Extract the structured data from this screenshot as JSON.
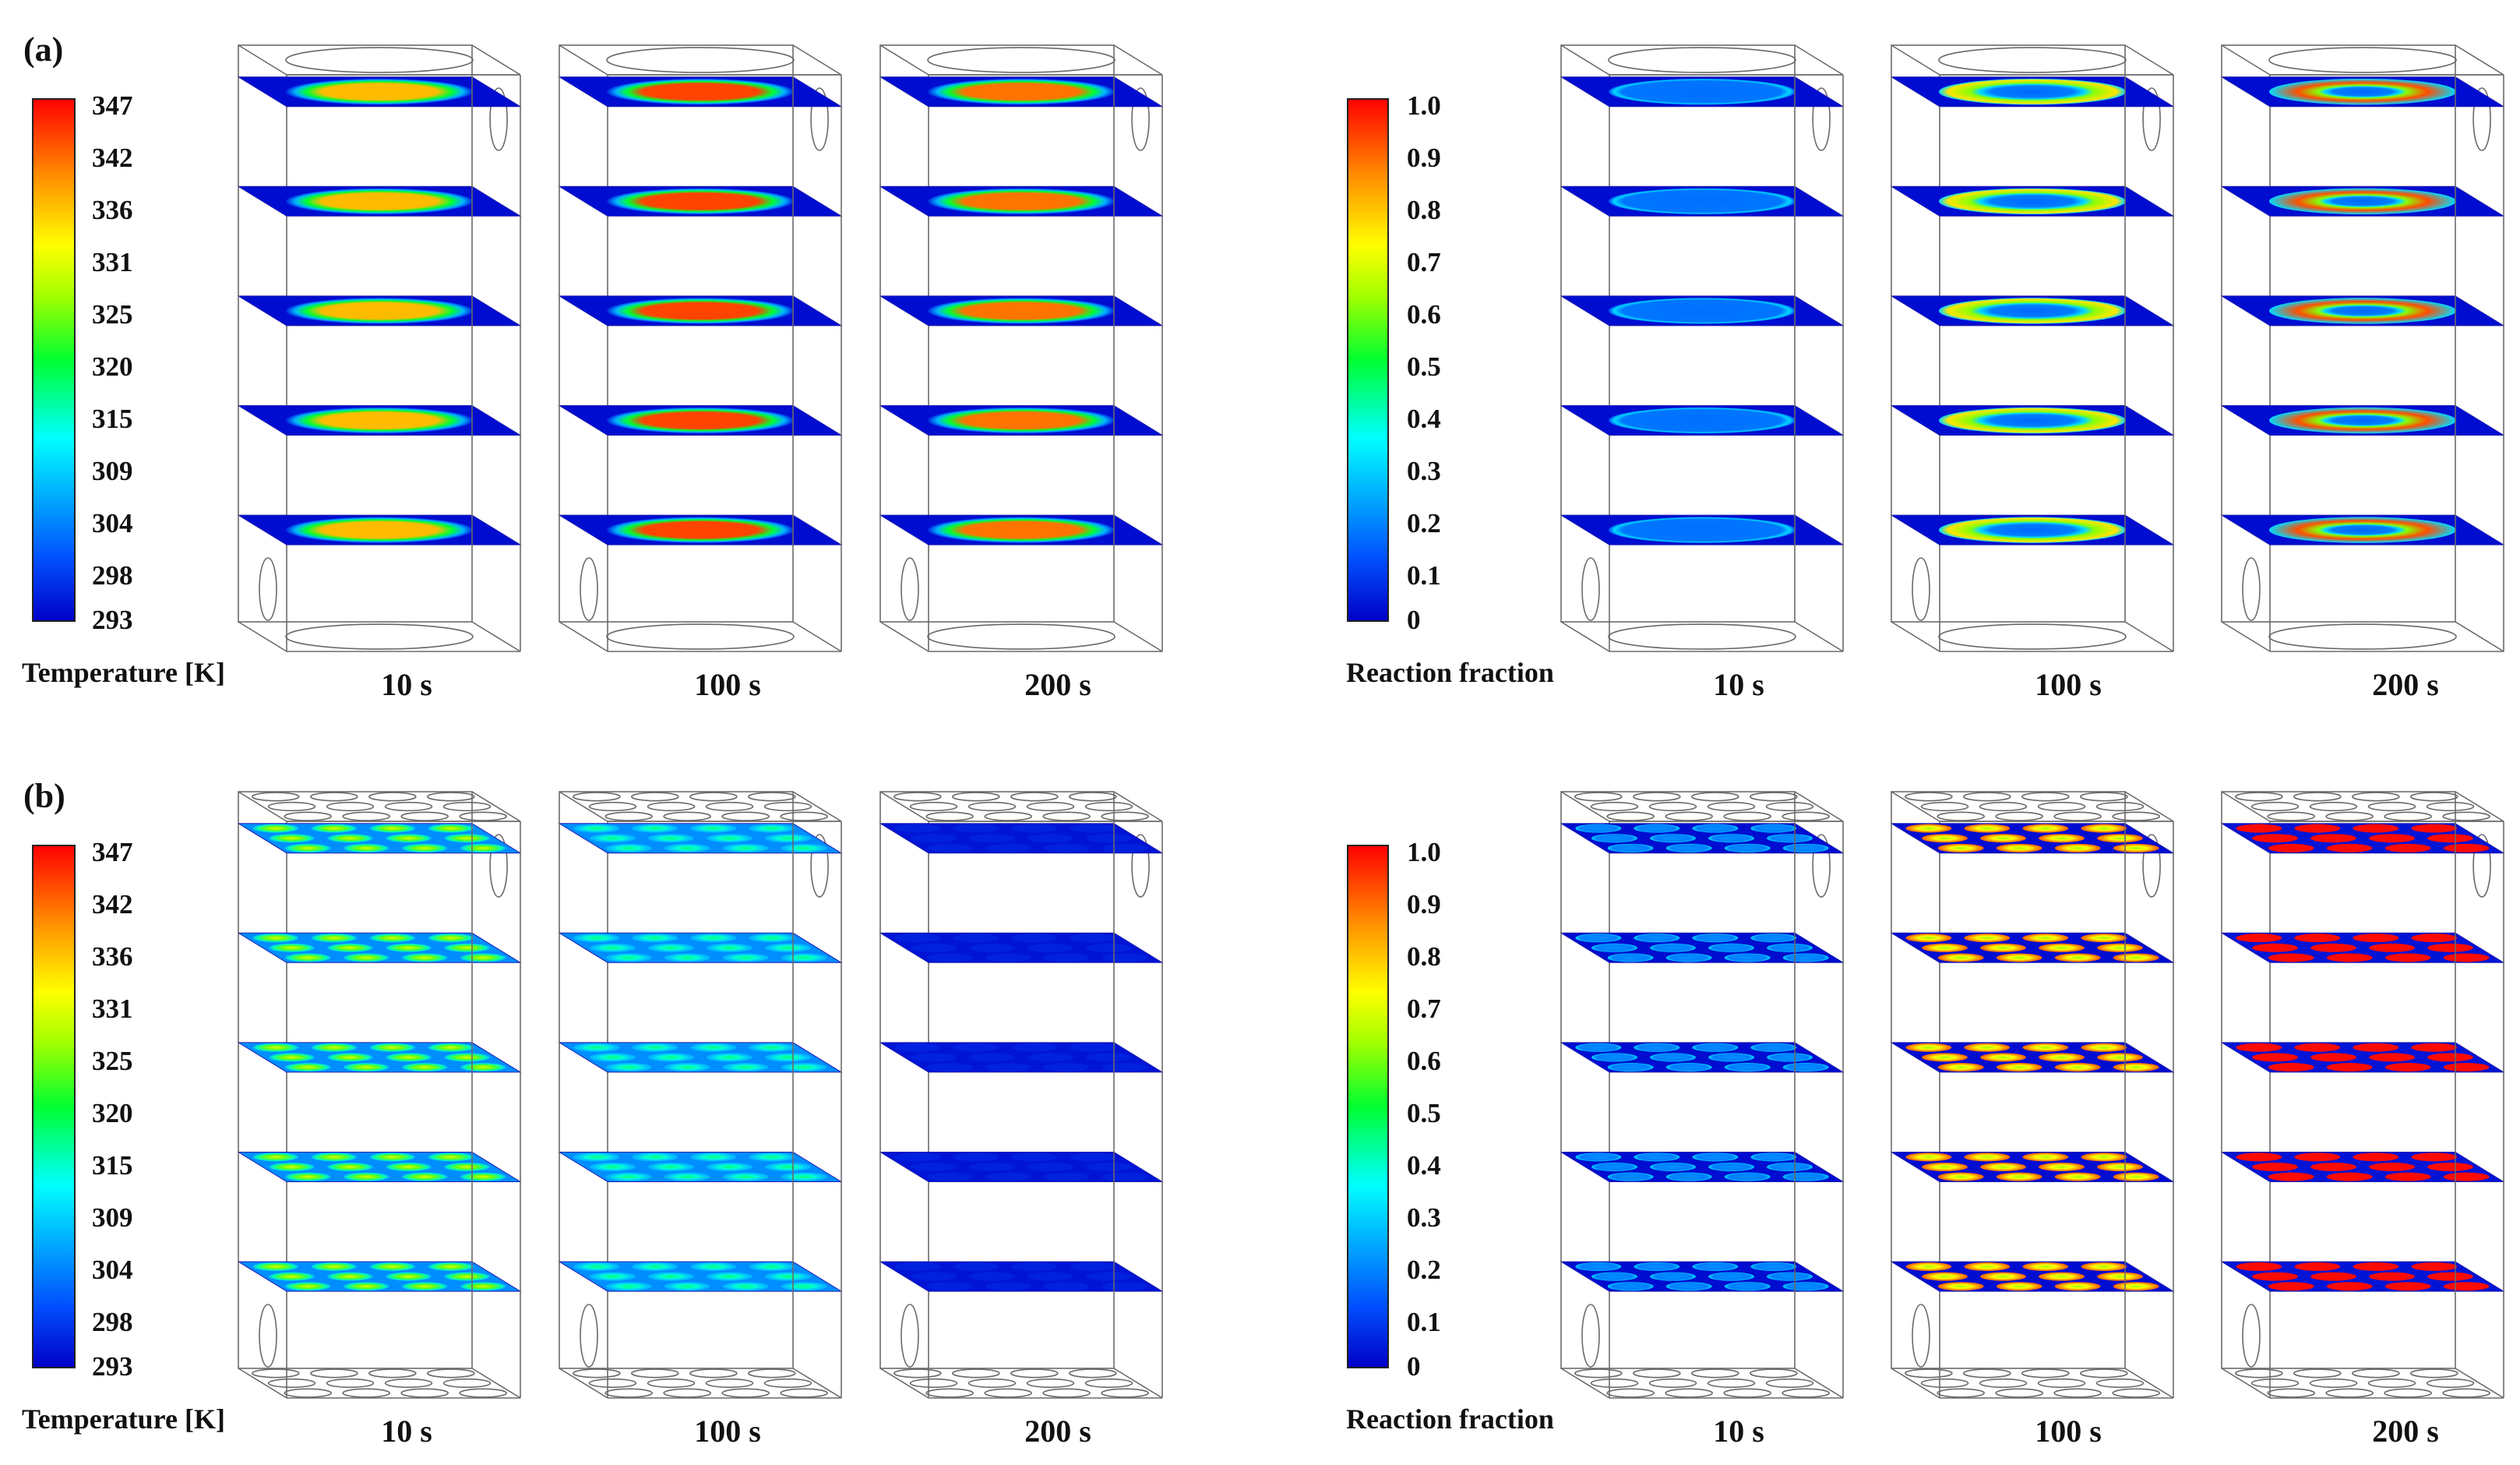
{
  "panels": [
    {
      "label": "(a)",
      "layout": "single",
      "left_group": {
        "colorbar_title": "Temperature [K]",
        "colorbar_ticks": [
          "347",
          "342",
          "336",
          "331",
          "325",
          "320",
          "315",
          "309",
          "304",
          "298",
          "293"
        ],
        "times": [
          "10 s",
          "100 s",
          "200 s"
        ],
        "mode": "temp",
        "levels": [
          0.8,
          0.93,
          0.88
        ]
      },
      "right_group": {
        "colorbar_title": "Reaction fraction",
        "colorbar_ticks": [
          "1.0",
          "0.9",
          "0.8",
          "0.7",
          "0.6",
          "0.5",
          "0.4",
          "0.3",
          "0.2",
          "0.1",
          "0"
        ],
        "times": [
          "10 s",
          "100 s",
          "200 s"
        ],
        "mode": "front",
        "levels": [
          0.12,
          0.75,
          0.92
        ]
      }
    },
    {
      "label": "(b)",
      "layout": "grid",
      "left_group": {
        "colorbar_title": "Temperature [K]",
        "colorbar_ticks": [
          "347",
          "342",
          "336",
          "331",
          "325",
          "320",
          "315",
          "309",
          "304",
          "298",
          "293"
        ],
        "times": [
          "10 s",
          "100 s",
          "200 s"
        ],
        "mode": "spots",
        "levels": [
          0.68,
          0.45,
          0.02
        ]
      },
      "right_group": {
        "colorbar_title": "Reaction fraction",
        "colorbar_ticks": [
          "1.0",
          "0.9",
          "0.8",
          "0.7",
          "0.6",
          "0.5",
          "0.4",
          "0.3",
          "0.2",
          "0.1",
          "0"
        ],
        "times": [
          "10 s",
          "100 s",
          "200 s"
        ],
        "mode": "rspots",
        "levels": [
          0.16,
          0.8,
          0.98
        ]
      }
    }
  ]
}
